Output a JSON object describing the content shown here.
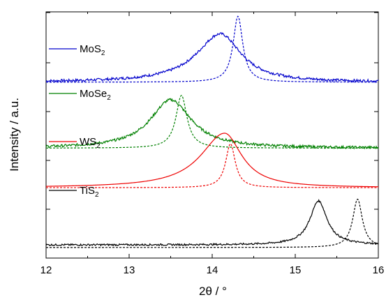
{
  "chart_data": {
    "type": "line",
    "xlabel": "2θ / °",
    "ylabel": "Intensity / a.u.",
    "xlim": [
      12,
      16
    ],
    "xticks": [
      "12",
      "13",
      "14",
      "15",
      "16"
    ],
    "y_tick_count": 5,
    "yticklabels": false,
    "grid": false,
    "legend": "inline labels at left, one per curve pair",
    "series": [
      {
        "name": "MoS2",
        "label_main": "MoS",
        "label_sub": "2",
        "color": "#0000cc",
        "measured": {
          "baseline": 0.1,
          "peak_x": 14.1,
          "peak_height": 0.55,
          "width_left": 0.7,
          "width_right": 0.6,
          "noise": 0.03
        },
        "reference": {
          "baseline": 0.1,
          "peak_x": 14.31,
          "peak_height": 0.75,
          "width": 0.07
        }
      },
      {
        "name": "MoSe2",
        "label_main": "MoSe",
        "label_sub": "2",
        "color": "#008000",
        "measured": {
          "baseline": -0.05,
          "peak_x": 13.5,
          "peak_height": 0.55,
          "width_left": 0.6,
          "width_right": 0.6,
          "noise": 0.03
        },
        "reference": {
          "baseline": -0.05,
          "peak_x": 13.63,
          "peak_height": 0.6,
          "width": 0.08
        }
      },
      {
        "name": "WS2",
        "label_main": "WS",
        "label_sub": "2",
        "color": "#ee0000",
        "measured": {
          "baseline": -0.2,
          "peak_x": 14.15,
          "peak_height": 0.62,
          "width_left": 0.7,
          "width_right": 0.5,
          "noise": 0.0
        },
        "reference": {
          "baseline": -0.2,
          "peak_x": 14.22,
          "peak_height": 0.5,
          "width": 0.07
        }
      },
      {
        "name": "TiS2",
        "label_main": "TiS",
        "label_sub": "2",
        "color": "#000000",
        "measured": {
          "baseline": -0.4,
          "peak_x": 15.28,
          "peak_height": 0.5,
          "width_left": 0.25,
          "width_right": 0.25,
          "noise": 0.02
        },
        "reference": {
          "baseline": -0.43,
          "peak_x": 15.75,
          "peak_height": 0.55,
          "width": 0.07
        }
      }
    ]
  }
}
